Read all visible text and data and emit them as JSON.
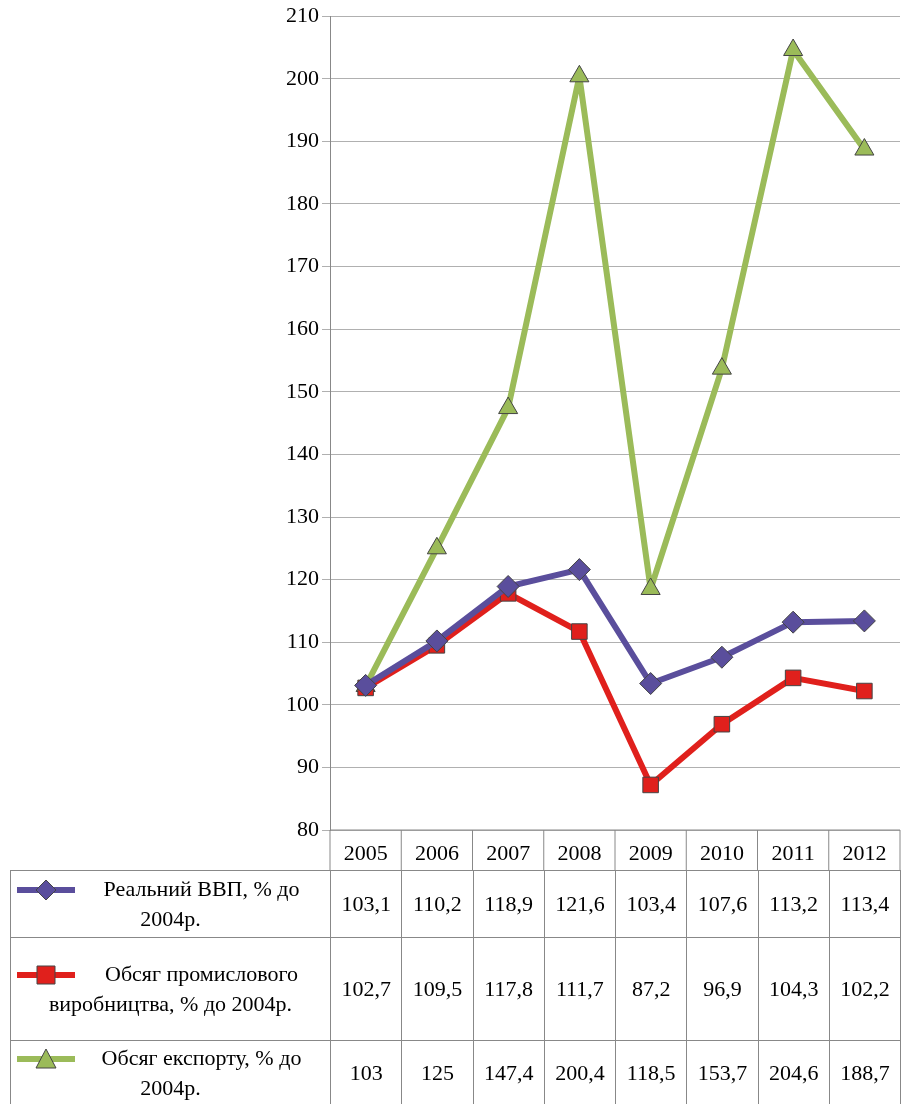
{
  "chart_data": {
    "type": "line",
    "categories": [
      "2005",
      "2006",
      "2007",
      "2008",
      "2009",
      "2010",
      "2011",
      "2012"
    ],
    "ylim": [
      80,
      210
    ],
    "yticks": [
      80,
      90,
      100,
      110,
      120,
      130,
      140,
      150,
      160,
      170,
      180,
      190,
      200,
      210
    ],
    "grid": "y",
    "legend": "bottom",
    "data_labels": true,
    "line_style": "solid",
    "series": [
      {
        "name": "Реальний ВВП, % до 2004р.",
        "color": "#5a4e9c",
        "marker": "diamond",
        "values": [
          103.1,
          110.2,
          118.9,
          121.6,
          103.4,
          107.6,
          113.2,
          113.4
        ],
        "value_labels": [
          "103,1",
          "110,2",
          "118,9",
          "121,6",
          "103,4",
          "107,6",
          "113,2",
          "113,4"
        ]
      },
      {
        "name": "Обсяг промислового виробництва, % до 2004р.",
        "color": "#e0201c",
        "marker": "square",
        "values": [
          102.7,
          109.5,
          117.8,
          111.7,
          87.2,
          96.9,
          104.3,
          102.2
        ],
        "value_labels": [
          "102,7",
          "109,5",
          "117,8",
          "111,7",
          "87,2",
          "96,9",
          "104,3",
          "102,2"
        ]
      },
      {
        "name": "Обсяг експорту, % до 2004р.",
        "color": "#9bbb59",
        "marker": "triangle",
        "values": [
          103,
          125,
          147.4,
          200.4,
          118.5,
          153.7,
          204.6,
          188.7
        ],
        "value_labels": [
          "103",
          "125",
          "147,4",
          "200,4",
          "118,5",
          "153,7",
          "204,6",
          "188,7"
        ]
      }
    ]
  }
}
